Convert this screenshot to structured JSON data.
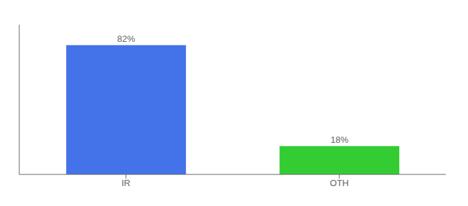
{
  "chart_data": {
    "type": "bar",
    "categories": [
      "IR",
      "OTH"
    ],
    "values": [
      82,
      18
    ],
    "value_labels": [
      "82%",
      "18%"
    ],
    "colors": [
      "#4472e8",
      "#33cc33"
    ],
    "data_labels": true,
    "ylim": [
      0,
      95
    ],
    "tick_labels": "x",
    "grid": false
  }
}
